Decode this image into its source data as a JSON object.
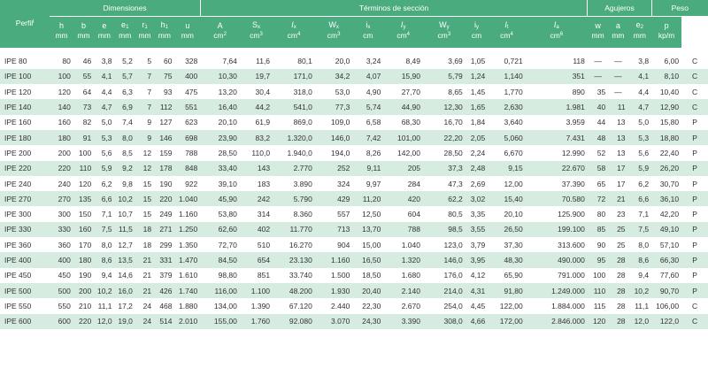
{
  "headers": {
    "perfil": "Perfil",
    "groups": {
      "dimensiones": "Dimensiones",
      "terminos": "Términos de sección",
      "agujeros": "Agujeros",
      "peso": "Peso"
    },
    "symbols": [
      {
        "b": "h",
        "s": ""
      },
      {
        "b": "b",
        "s": ""
      },
      {
        "b": "e",
        "s": ""
      },
      {
        "b": "e",
        "s": "1"
      },
      {
        "b": "r",
        "s": "1"
      },
      {
        "b": "h",
        "s": "1"
      },
      {
        "b": "u",
        "s": ""
      },
      {
        "b": "A",
        "s": ""
      },
      {
        "b": "S",
        "s": "x"
      },
      {
        "b": "I",
        "s": "x"
      },
      {
        "b": "W",
        "s": "x"
      },
      {
        "b": "i",
        "s": "x"
      },
      {
        "b": "I",
        "s": "y"
      },
      {
        "b": "W",
        "s": "y"
      },
      {
        "b": "i",
        "s": "y"
      },
      {
        "b": "I",
        "s": "t"
      },
      {
        "b": "I",
        "s": "a"
      },
      {
        "b": "w",
        "s": ""
      },
      {
        "b": "a",
        "s": ""
      },
      {
        "b": "e",
        "s": "2"
      },
      {
        "b": "p",
        "s": ""
      }
    ],
    "units": [
      {
        "b": "mm",
        "p": ""
      },
      {
        "b": "mm",
        "p": ""
      },
      {
        "b": "mm",
        "p": ""
      },
      {
        "b": "mm",
        "p": ""
      },
      {
        "b": "mm",
        "p": ""
      },
      {
        "b": "mm",
        "p": ""
      },
      {
        "b": "mm",
        "p": ""
      },
      {
        "b": "cm",
        "p": "2"
      },
      {
        "b": "cm",
        "p": "3"
      },
      {
        "b": "cm",
        "p": "4"
      },
      {
        "b": "cm",
        "p": "3"
      },
      {
        "b": "cm",
        "p": ""
      },
      {
        "b": "cm",
        "p": "4"
      },
      {
        "b": "cm",
        "p": "3"
      },
      {
        "b": "cm",
        "p": ""
      },
      {
        "b": "cm",
        "p": "4"
      },
      {
        "b": "cm",
        "p": "6"
      },
      {
        "b": "mm",
        "p": ""
      },
      {
        "b": "mm",
        "p": ""
      },
      {
        "b": "mm",
        "p": ""
      },
      {
        "b": "kp/m",
        "p": ""
      }
    ]
  },
  "rows": [
    [
      "IPE  80",
      "80",
      "46",
      "3,8",
      "5,2",
      "5",
      "60",
      "328",
      "7,64",
      "11,6",
      "80,1",
      "20,0",
      "3,24",
      "8,49",
      "3,69",
      "1,05",
      "0,721",
      "118",
      "—",
      "—",
      "3,8",
      "6,00",
      "C"
    ],
    [
      "IPE 100",
      "100",
      "55",
      "4,1",
      "5,7",
      "7",
      "75",
      "400",
      "10,30",
      "19,7",
      "171,0",
      "34,2",
      "4,07",
      "15,90",
      "5,79",
      "1,24",
      "1,140",
      "351",
      "—",
      "—",
      "4,1",
      "8,10",
      "C"
    ],
    [
      "IPE 120",
      "120",
      "64",
      "4,4",
      "6,3",
      "7",
      "93",
      "475",
      "13,20",
      "30,4",
      "318,0",
      "53,0",
      "4,90",
      "27,70",
      "8,65",
      "1,45",
      "1,770",
      "890",
      "35",
      "—",
      "4,4",
      "10,40",
      "C"
    ],
    [
      "IPE 140",
      "140",
      "73",
      "4,7",
      "6,9",
      "7",
      "112",
      "551",
      "16,40",
      "44,2",
      "541,0",
      "77,3",
      "5,74",
      "44,90",
      "12,30",
      "1,65",
      "2,630",
      "1.981",
      "40",
      "11",
      "4,7",
      "12,90",
      "C"
    ],
    [
      "IPE 160",
      "160",
      "82",
      "5,0",
      "7,4",
      "9",
      "127",
      "623",
      "20,10",
      "61,9",
      "869,0",
      "109,0",
      "6,58",
      "68,30",
      "16,70",
      "1,84",
      "3,640",
      "3.959",
      "44",
      "13",
      "5,0",
      "15,80",
      "P"
    ],
    [
      "IPE 180",
      "180",
      "91",
      "5,3",
      "8,0",
      "9",
      "146",
      "698",
      "23,90",
      "83,2",
      "1.320,0",
      "146,0",
      "7,42",
      "101,00",
      "22,20",
      "2,05",
      "5,060",
      "7.431",
      "48",
      "13",
      "5,3",
      "18,80",
      "P"
    ],
    [
      "IPE 200",
      "200",
      "100",
      "5,6",
      "8,5",
      "12",
      "159",
      "788",
      "28,50",
      "110,0",
      "1.940,0",
      "194,0",
      "8,26",
      "142,00",
      "28,50",
      "2,24",
      "6,670",
      "12.990",
      "52",
      "13",
      "5,6",
      "22,40",
      "P"
    ],
    [
      "IPE 220",
      "220",
      "110",
      "5,9",
      "9,2",
      "12",
      "178",
      "848",
      "33,40",
      "143",
      "2.770",
      "252",
      "9,11",
      "205",
      "37,3",
      "2,48",
      "9,15",
      "22.670",
      "58",
      "17",
      "5,9",
      "26,20",
      "P"
    ],
    [
      "IPE 240",
      "240",
      "120",
      "6,2",
      "9,8",
      "15",
      "190",
      "922",
      "39,10",
      "183",
      "3.890",
      "324",
      "9,97",
      "284",
      "47,3",
      "2,69",
      "12,00",
      "37.390",
      "65",
      "17",
      "6,2",
      "30,70",
      "P"
    ],
    [
      "IPE 270",
      "270",
      "135",
      "6,6",
      "10,2",
      "15",
      "220",
      "1.040",
      "45,90",
      "242",
      "5.790",
      "429",
      "11,20",
      "420",
      "62,2",
      "3,02",
      "15,40",
      "70.580",
      "72",
      "21",
      "6,6",
      "36,10",
      "P"
    ],
    [
      "IPE 300",
      "300",
      "150",
      "7,1",
      "10,7",
      "15",
      "249",
      "1.160",
      "53,80",
      "314",
      "8.360",
      "557",
      "12,50",
      "604",
      "80,5",
      "3,35",
      "20,10",
      "125.900",
      "80",
      "23",
      "7,1",
      "42,20",
      "P"
    ],
    [
      "IPE 330",
      "330",
      "160",
      "7,5",
      "11,5",
      "18",
      "271",
      "1.250",
      "62,60",
      "402",
      "11.770",
      "713",
      "13,70",
      "788",
      "98,5",
      "3,55",
      "26,50",
      "199.100",
      "85",
      "25",
      "7,5",
      "49,10",
      "P"
    ],
    [
      "IPE 360",
      "360",
      "170",
      "8,0",
      "12,7",
      "18",
      "299",
      "1.350",
      "72,70",
      "510",
      "16.270",
      "904",
      "15,00",
      "1.040",
      "123,0",
      "3,79",
      "37,30",
      "313.600",
      "90",
      "25",
      "8,0",
      "57,10",
      "P"
    ],
    [
      "IPE 400",
      "400",
      "180",
      "8,6",
      "13,5",
      "21",
      "331",
      "1.470",
      "84,50",
      "654",
      "23.130",
      "1.160",
      "16,50",
      "1.320",
      "146,0",
      "3,95",
      "48,30",
      "490.000",
      "95",
      "28",
      "8,6",
      "66,30",
      "P"
    ],
    [
      "IPE 450",
      "450",
      "190",
      "9,4",
      "14,6",
      "21",
      "379",
      "1.610",
      "98,80",
      "851",
      "33.740",
      "1.500",
      "18,50",
      "1.680",
      "176,0",
      "4,12",
      "65,90",
      "791.000",
      "100",
      "28",
      "9,4",
      "77,60",
      "P"
    ],
    [
      "IPE 500",
      "500",
      "200",
      "10,2",
      "16,0",
      "21",
      "426",
      "1.740",
      "116,00",
      "1.100",
      "48.200",
      "1.930",
      "20,40",
      "2.140",
      "214,0",
      "4,31",
      "91,80",
      "1.249.000",
      "110",
      "28",
      "10,2",
      "90,70",
      "P"
    ],
    [
      "IPE 550",
      "550",
      "210",
      "11,1",
      "17,2",
      "24",
      "468",
      "1.880",
      "134,00",
      "1.390",
      "67.120",
      "2.440",
      "22,30",
      "2.670",
      "254,0",
      "4,45",
      "122,00",
      "1.884.000",
      "115",
      "28",
      "11,1",
      "106,00",
      "C"
    ],
    [
      "IPE 600",
      "600",
      "220",
      "12,0",
      "19,0",
      "24",
      "514",
      "2.010",
      "155,00",
      "1.760",
      "92.080",
      "3.070",
      "24,30",
      "3.390",
      "308,0",
      "4,66",
      "172,00",
      "2.846.000",
      "120",
      "28",
      "12,0",
      "122,0",
      "C"
    ]
  ]
}
